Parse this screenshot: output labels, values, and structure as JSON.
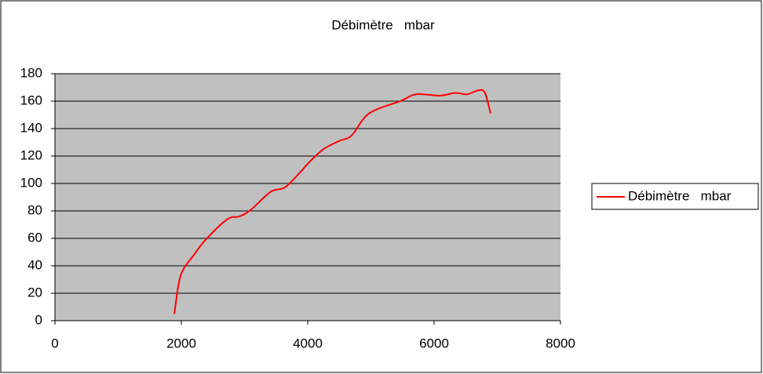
{
  "chart_data": {
    "type": "line",
    "title": "Débimètre   mbar",
    "x": [
      1890,
      1990,
      2200,
      2385,
      2730,
      2920,
      3105,
      3415,
      3665,
      4035,
      4250,
      4500,
      4695,
      4970,
      5465,
      5715,
      6085,
      6335,
      6520,
      6710,
      6805,
      6895
    ],
    "series": [
      {
        "name": "Débimètre   mbar",
        "color": "#ff0000",
        "values": [
          5,
          33,
          48,
          59,
          74,
          76,
          81,
          94,
          98,
          116,
          125,
          131,
          135,
          151,
          160,
          165,
          164,
          166,
          165,
          168,
          166,
          151
        ]
      }
    ],
    "xlim": [
      0,
      8000
    ],
    "xticks": [
      0,
      2000,
      4000,
      6000,
      8000
    ],
    "ylim": [
      0,
      180
    ],
    "yticks": [
      0,
      20,
      40,
      60,
      80,
      100,
      120,
      140,
      160,
      180
    ],
    "grid": true,
    "legend": "right",
    "plot_background": "#c0c0c0"
  }
}
